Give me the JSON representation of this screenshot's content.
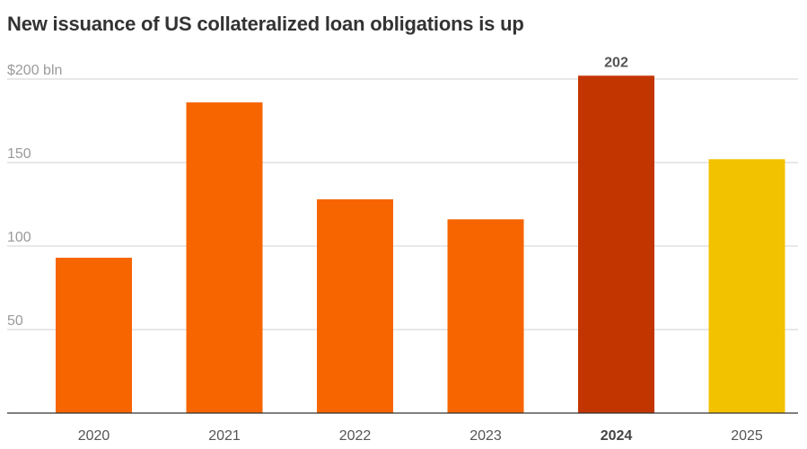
{
  "title": "New issuance of US collateralized loan obligations is up",
  "chart_data": {
    "type": "bar",
    "title": "New issuance of US collateralized loan obligations is up",
    "categories": [
      "2020",
      "2021",
      "2022",
      "2023",
      "2024",
      "2025"
    ],
    "values": [
      93,
      186,
      128,
      116,
      202,
      152
    ],
    "highlight_index": 4,
    "data_labels": [
      {
        "index": 4,
        "text": "202"
      }
    ],
    "ylim": [
      0,
      200
    ],
    "y_ticks": [
      50,
      100,
      150,
      200
    ],
    "y_tick_labels": [
      "50",
      "100",
      "150",
      "$200 bln"
    ],
    "grid": true,
    "colors": [
      "#f76501",
      "#f76501",
      "#f76501",
      "#f76501",
      "#c33500",
      "#f2c100"
    ],
    "grid_color": "#d0d0d0",
    "axis_color": "#333333"
  }
}
